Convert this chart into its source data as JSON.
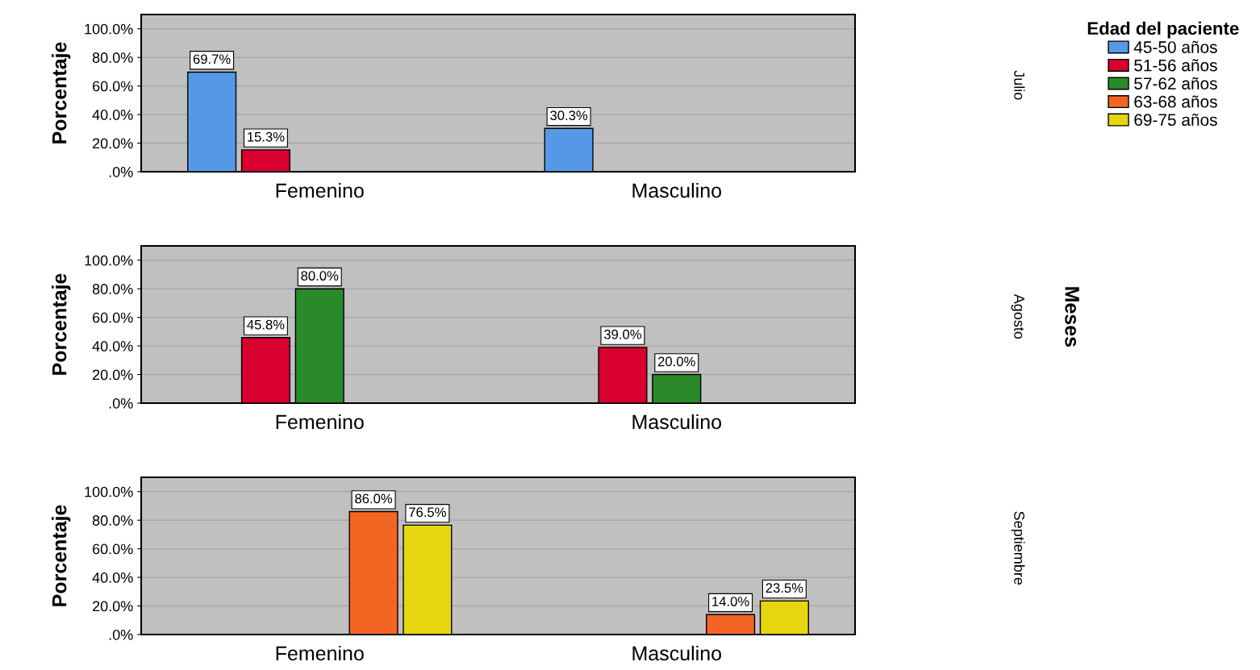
{
  "chart_data": [
    {
      "type": "bar",
      "categories": [
        "Femenino",
        "Masculino"
      ],
      "ylabel": "Porcentaje",
      "legend_title": "Edad del paciente",
      "legend": "right",
      "grid": "y",
      "ylim": [
        0,
        110
      ],
      "yticks": [
        {
          "value": 0,
          "label": ".0%"
        },
        {
          "value": 20,
          "label": "20.0%"
        },
        {
          "value": 40,
          "label": "40.0%"
        },
        {
          "value": 60,
          "label": "60.0%"
        },
        {
          "value": 80,
          "label": "80.0%"
        },
        {
          "value": 100,
          "label": "100.0%"
        }
      ],
      "annotations": [
        "Julio"
      ],
      "series": [
        {
          "name": "45-50 años",
          "color": "#5599e6",
          "values": [
            69.7,
            30.3
          ],
          "value_labels": [
            "69.7%",
            "30.3%"
          ]
        },
        {
          "name": "51-56 años",
          "color": "#d9002f",
          "values": [
            15.3,
            null
          ],
          "value_labels": [
            "15.3%",
            null
          ]
        },
        {
          "name": "57-62 años",
          "color": "#2a8a2a",
          "values": [
            null,
            null
          ]
        },
        {
          "name": "63-68 años",
          "color": "#f26522",
          "values": [
            null,
            null
          ]
        },
        {
          "name": "69-75 años",
          "color": "#e6d60f",
          "values": [
            null,
            null
          ]
        }
      ]
    },
    {
      "type": "bar",
      "categories": [
        "Femenino",
        "Masculino"
      ],
      "ylabel": "Porcentaje",
      "grid": "y",
      "ylim": [
        0,
        110
      ],
      "yticks": [
        {
          "value": 0,
          "label": ".0%"
        },
        {
          "value": 20,
          "label": "20.0%"
        },
        {
          "value": 40,
          "label": "40.0%"
        },
        {
          "value": 60,
          "label": "60.0%"
        },
        {
          "value": 80,
          "label": "80.0%"
        },
        {
          "value": 100,
          "label": "100.0%"
        }
      ],
      "annotations": [
        "Agosto",
        "Meses"
      ],
      "series": [
        {
          "values": [
            null,
            null
          ]
        },
        {
          "color": "#d9002f",
          "values": [
            45.8,
            39.0
          ],
          "value_labels": [
            "45.8%",
            "39.0%"
          ]
        },
        {
          "color": "#2a8a2a",
          "values": [
            80.0,
            20.0
          ],
          "value_labels": [
            "80.0%",
            "20.0%"
          ]
        },
        {
          "values": [
            null,
            null
          ]
        },
        {
          "values": [
            null,
            null
          ]
        }
      ]
    },
    {
      "type": "bar",
      "categories": [
        "Femenino",
        "Masculino"
      ],
      "ylabel": "Porcentaje",
      "grid": "y",
      "ylim": [
        0,
        110
      ],
      "yticks": [
        {
          "value": 0,
          "label": ".0%"
        },
        {
          "value": 20,
          "label": "20.0%"
        },
        {
          "value": 40,
          "label": "40.0%"
        },
        {
          "value": 60,
          "label": "60.0%"
        },
        {
          "value": 80,
          "label": "80.0%"
        },
        {
          "value": 100,
          "label": "100.0%"
        }
      ],
      "annotations": [
        "Septiembre"
      ],
      "series": [
        {
          "values": [
            null,
            null
          ]
        },
        {
          "values": [
            null,
            null
          ]
        },
        {
          "values": [
            null,
            null
          ]
        },
        {
          "color": "#f26522",
          "values": [
            86.0,
            14.0
          ],
          "value_labels": [
            "86.0%",
            "14.0%"
          ]
        },
        {
          "color": "#e6d60f",
          "values": [
            76.5,
            23.5
          ],
          "value_labels": [
            "76.5%",
            "23.5%"
          ]
        }
      ]
    }
  ]
}
